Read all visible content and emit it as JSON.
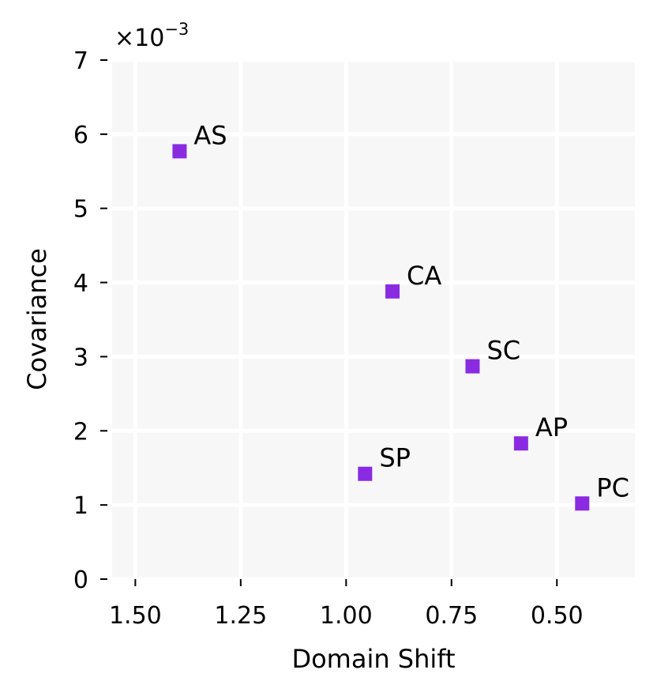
{
  "chart_data": {
    "type": "scatter",
    "title": "",
    "xlabel": "Domain Shift",
    "ylabel": "Covariance",
    "y_offset_label": "×10",
    "y_offset_exponent": "−3",
    "xlim": [
      1.555,
      0.315
    ],
    "ylim": [
      0,
      7
    ],
    "x_inverted": true,
    "grid": true,
    "background_color": "#f7f7f7",
    "grid_color": "#ffffff",
    "marker": "square",
    "marker_color": "#8a2be2",
    "x_ticks": [
      1.5,
      1.25,
      1.0,
      0.75,
      0.5
    ],
    "x_tick_labels": [
      "1.50",
      "1.25",
      "1.00",
      "0.75",
      "0.50"
    ],
    "y_ticks": [
      0,
      1,
      2,
      3,
      4,
      5,
      6,
      7
    ],
    "y_tick_labels": [
      "0",
      "1",
      "2",
      "3",
      "4",
      "5",
      "6",
      "7"
    ],
    "points": [
      {
        "label": "AS",
        "x": 1.395,
        "y": 5.77
      },
      {
        "label": "CA",
        "x": 0.89,
        "y": 3.88
      },
      {
        "label": "SC",
        "x": 0.7,
        "y": 2.87
      },
      {
        "label": "AP",
        "x": 0.585,
        "y": 1.83
      },
      {
        "label": "SP",
        "x": 0.955,
        "y": 1.42
      },
      {
        "label": "PC",
        "x": 0.44,
        "y": 1.02
      }
    ]
  }
}
